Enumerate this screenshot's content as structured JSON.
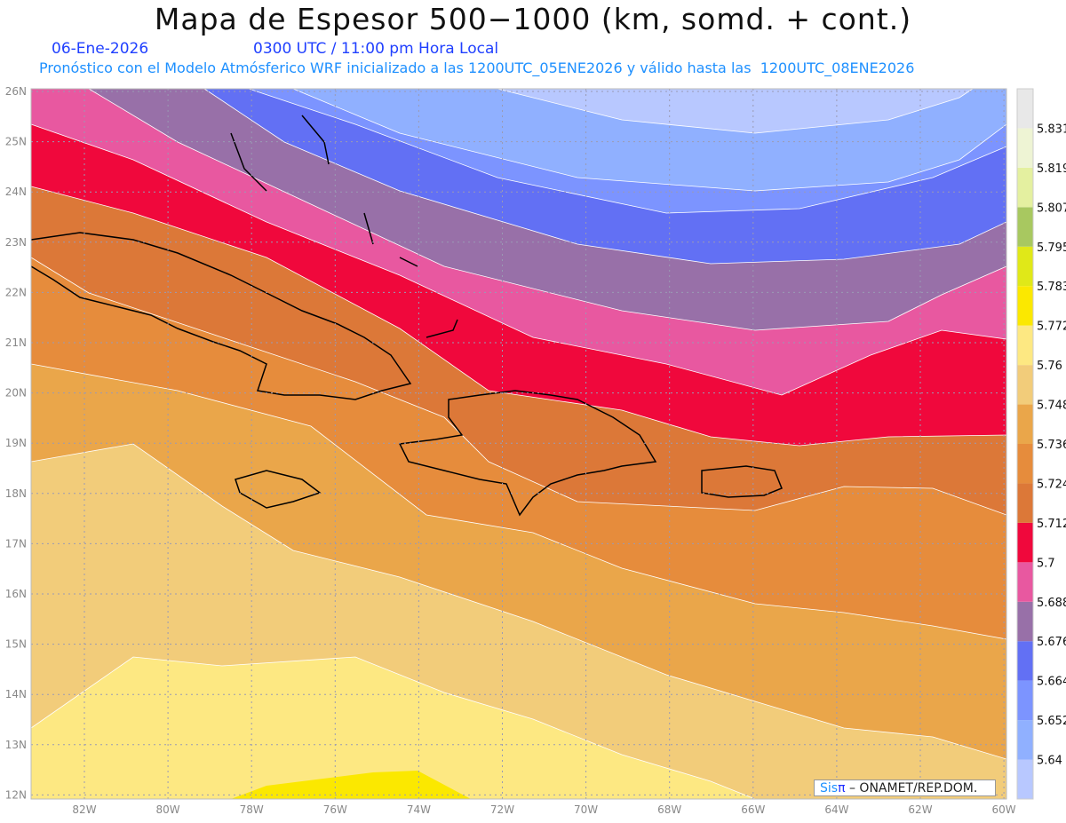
{
  "header": {
    "title": "Mapa de Espesor 500−1000 (km, somd. + cont.)",
    "date": "06-Ene-2026",
    "time": "0300 UTC / 11:00 pm Hora Local",
    "description": "Pronóstico con el Modelo Atmósferico WRF inicializado a las 1200UTC_05ENE2026 y válido hasta las  1200UTC_08ENE2026"
  },
  "map": {
    "lat_labels": [
      "26N",
      "25N",
      "24N",
      "23N",
      "22N",
      "21N",
      "20N",
      "19N",
      "18N",
      "17N",
      "16N",
      "15N",
      "14N",
      "13N",
      "12N"
    ],
    "lon_labels": [
      "82W",
      "80W",
      "78W",
      "76W",
      "74W",
      "72W",
      "70W",
      "68W",
      "66W",
      "64W",
      "62W",
      "60W"
    ]
  },
  "colorbar": {
    "levels": [
      "5.64",
      "5.652",
      "5.664",
      "5.676",
      "5.688",
      "5.7",
      "5.712",
      "5.724",
      "5.736",
      "5.748",
      "5.76",
      "5.772",
      "5.783",
      "5.795",
      "5.807",
      "5.819",
      "5.831"
    ],
    "colors": [
      "#b8c8ff",
      "#90b0ff",
      "#7c94ff",
      "#6270f4",
      "#9870a8",
      "#e858a0",
      "#f0083c",
      "#dc7838",
      "#e68c3c",
      "#eaa64a",
      "#f2cc7a",
      "#fde882",
      "#fbe800",
      "#e0e818",
      "#a8c860",
      "#e4f0a0",
      "#eef4d4",
      "#e8e8e8"
    ]
  },
  "credit": {
    "sis": "Sis",
    "pi": "π",
    "org": "– ONAMET/REP.DOM."
  }
}
